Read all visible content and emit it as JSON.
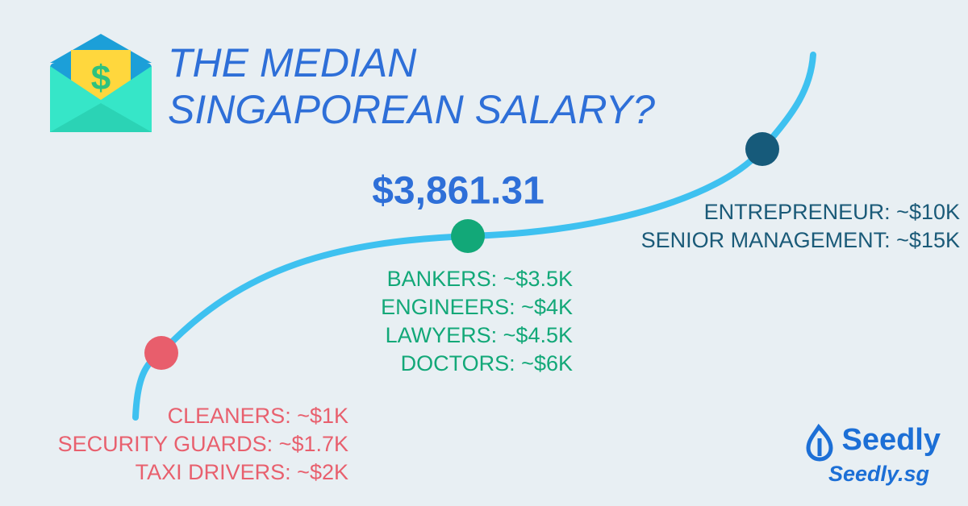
{
  "header": {
    "title_lines": [
      "THE MEDIAN",
      "SINGAPOREAN SALARY?"
    ]
  },
  "median": "$3,861.31",
  "groups": [
    {
      "items": [
        "CLEANERS: ~$1K",
        "SECURITY GUARDS: ~$1.7K",
        "TAXI DRIVERS: ~$2K"
      ]
    },
    {
      "items": [
        "BANKERS: ~$3.5K",
        "ENGINEERS: ~$4K",
        "LAWYERS: ~$4.5K",
        "DOCTORS: ~$6K"
      ]
    },
    {
      "items": [
        "ENTREPRENEUR: ~$10K",
        "SENIOR MANAGEMENT: ~$15K"
      ]
    }
  ],
  "brand": {
    "name": "Seedly",
    "site": "Seedly.sg"
  }
}
